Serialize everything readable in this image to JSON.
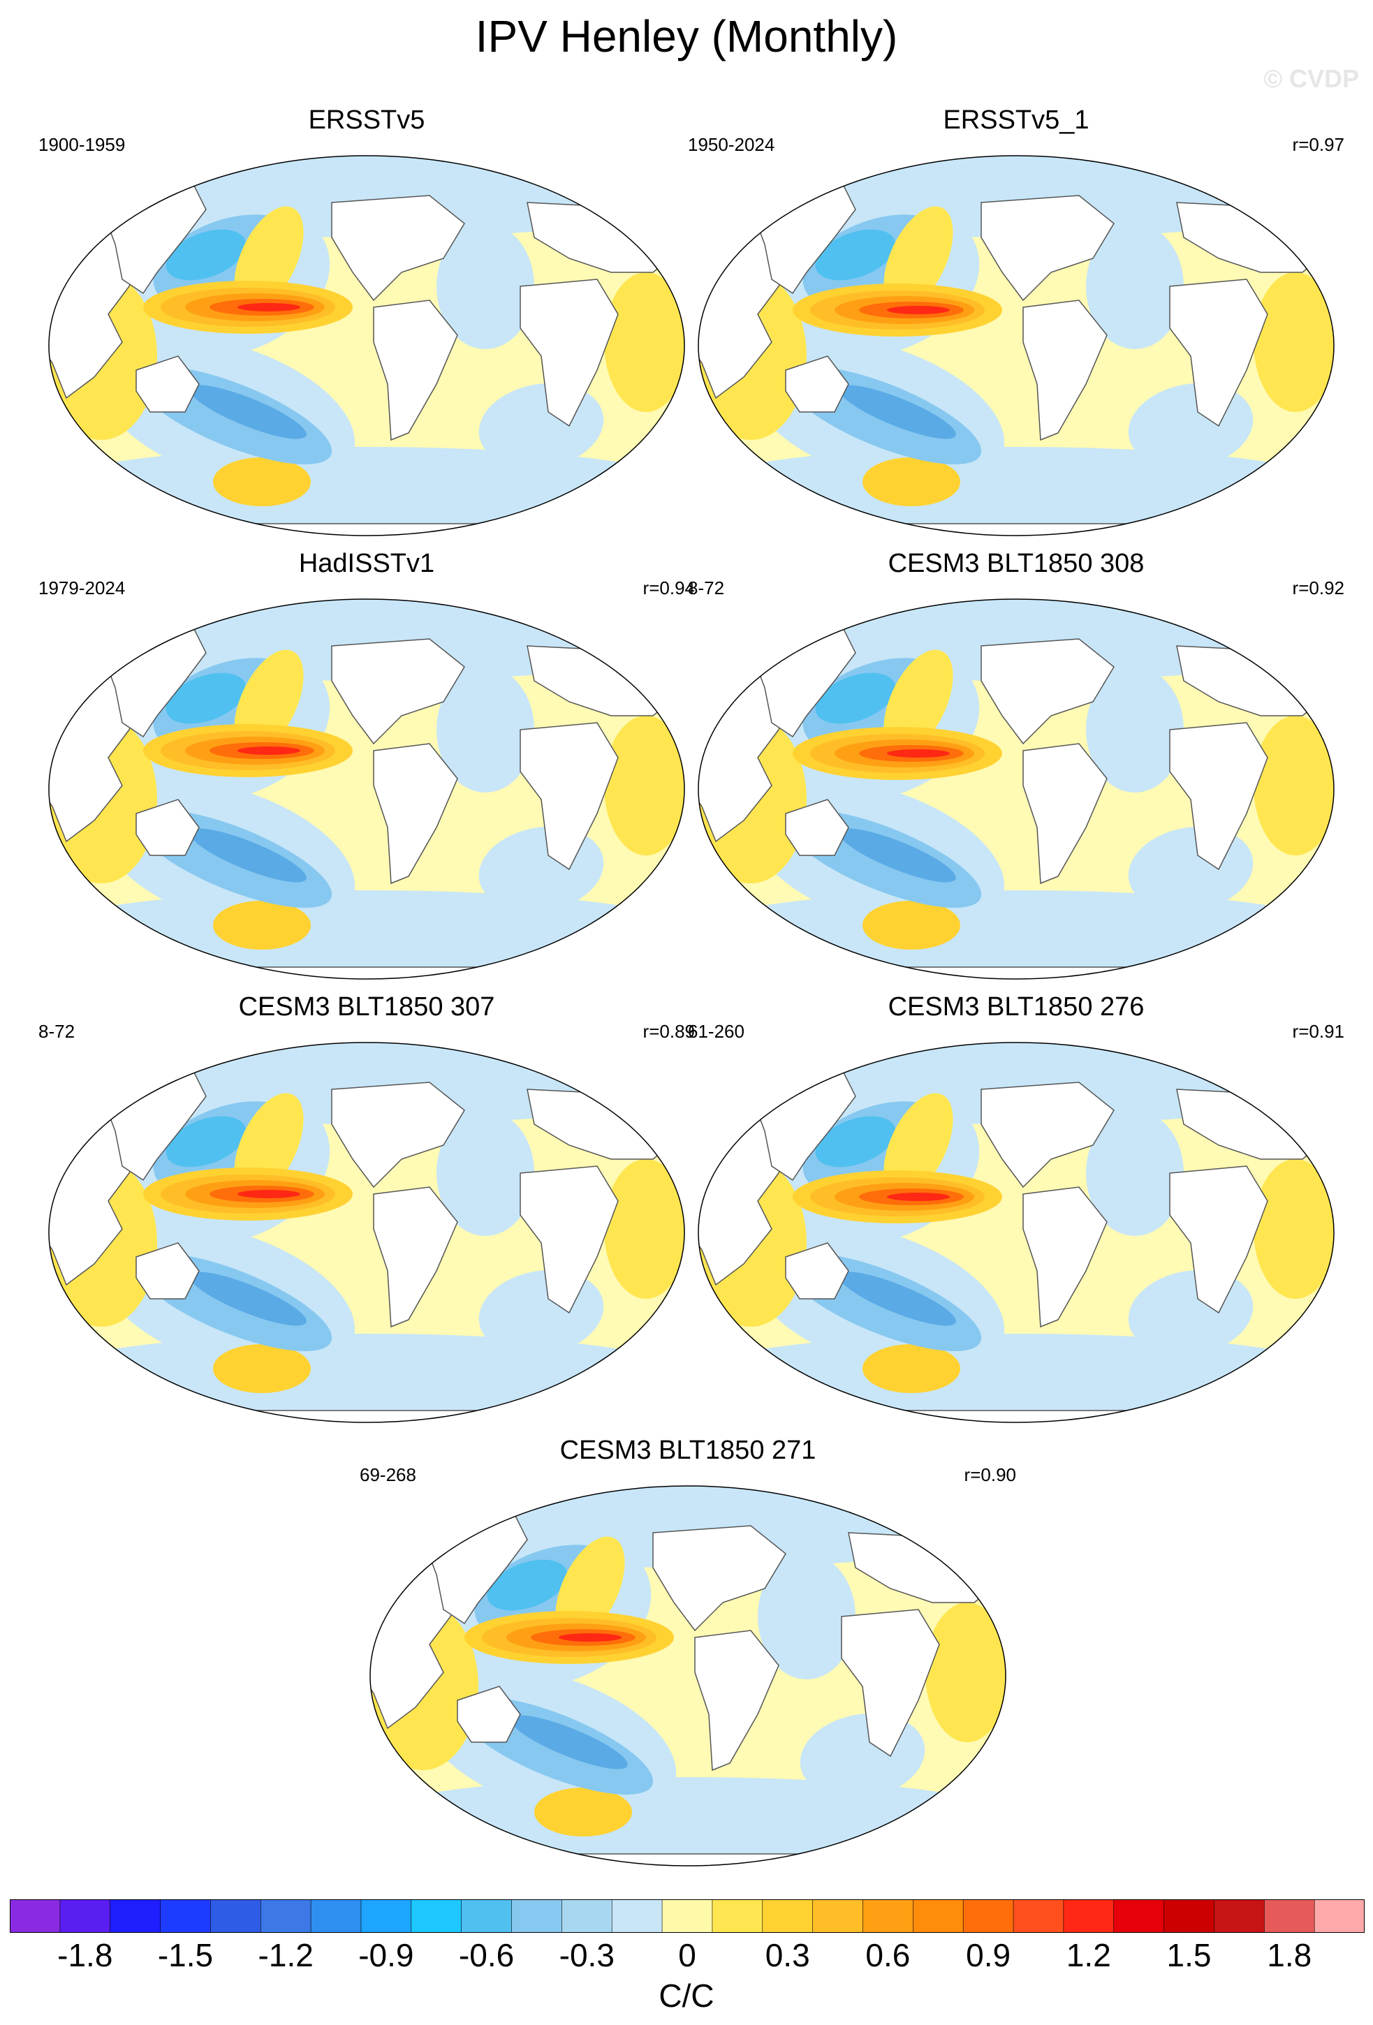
{
  "title": "IPV Henley (Monthly)",
  "watermark": "© CVDP",
  "panels": [
    {
      "title": "ERSSTv5",
      "period": "1900-1959",
      "corr": "",
      "pattern": "obs1"
    },
    {
      "title": "ERSSTv5_1",
      "period": "1950-2024",
      "corr": "r=0.97",
      "pattern": "obs2"
    },
    {
      "title": "HadISSTv1",
      "period": "1979-2024",
      "corr": "r=0.94",
      "pattern": "obs3"
    },
    {
      "title": "CESM3 BLT1850 308",
      "period": "8-72",
      "corr": "r=0.92",
      "pattern": "m1"
    },
    {
      "title": "CESM3 BLT1850 307",
      "period": "8-72",
      "corr": "r=0.89",
      "pattern": "m2"
    },
    {
      "title": "CESM3 BLT1850 276",
      "period": "61-260",
      "corr": "r=0.91",
      "pattern": "m3"
    },
    {
      "title": "CESM3 BLT1850 271",
      "period": "69-268",
      "corr": "r=0.90",
      "pattern": "m4"
    }
  ],
  "colorbar": {
    "units": "C/C",
    "tick_labels": [
      "-1.8",
      "-1.5",
      "-1.2",
      "-0.9",
      "-0.6",
      "-0.3",
      "0",
      "0.3",
      "0.6",
      "0.9",
      "1.2",
      "1.5",
      "1.8"
    ],
    "colors": [
      "#8a2be2",
      "#5a1ef0",
      "#1e1eff",
      "#1e3cff",
      "#2e5ce6",
      "#3c78e6",
      "#2e8ff0",
      "#1ea5ff",
      "#1ec8ff",
      "#50c0f0",
      "#87c8f0",
      "#a8d8f0",
      "#c8e6f8",
      "#fffaaa",
      "#ffe650",
      "#ffd232",
      "#ffbe28",
      "#ffa014",
      "#ff8c0a",
      "#ff6e0a",
      "#ff501e",
      "#ff2814",
      "#e6000a",
      "#cd0000",
      "#c81414",
      "#e65a5a",
      "#ffaaaa"
    ]
  }
}
